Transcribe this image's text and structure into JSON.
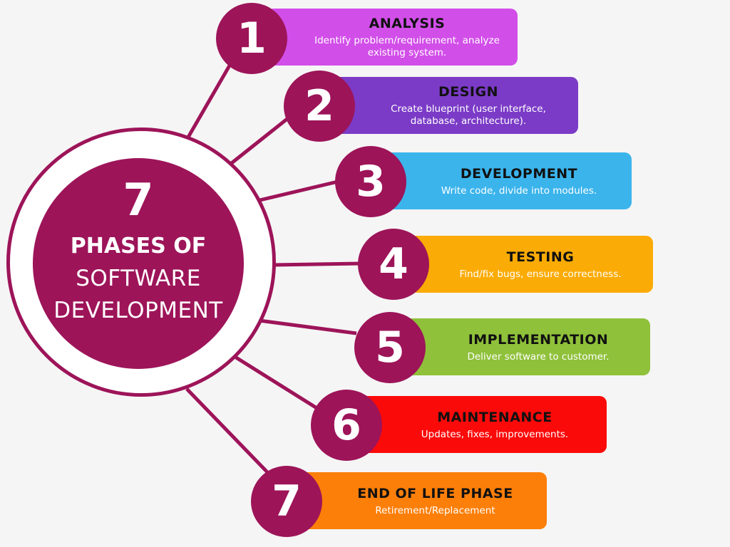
{
  "hub": {
    "number": "7",
    "line1": "PHASES OF",
    "line2": "SOFTWARE",
    "line3": "DEVELOPMENT",
    "color": "#9d1459"
  },
  "phases": [
    {
      "number": "1",
      "title": "ANALYSIS",
      "desc_lines": [
        "Identify problem/requirement, analyze",
        "existing system."
      ],
      "color": "#d24ee9"
    },
    {
      "number": "2",
      "title": "DESIGN",
      "desc_lines": [
        "Create blueprint (user interface,",
        "database, architecture)."
      ],
      "color": "#7b3bc7"
    },
    {
      "number": "3",
      "title": "DEVELOPMENT",
      "desc_lines": [
        "Write code, divide into modules."
      ],
      "color": "#3bb4ec"
    },
    {
      "number": "4",
      "title": "TESTING",
      "desc_lines": [
        "Find/fix bugs, ensure correctness."
      ],
      "color": "#fbab05"
    },
    {
      "number": "5",
      "title": "IMPLEMENTATION",
      "desc_lines": [
        "Deliver software to customer."
      ],
      "color": "#8fc13a"
    },
    {
      "number": "6",
      "title": "MAINTENANCE",
      "desc_lines": [
        "Updates, fixes, improvements."
      ],
      "color": "#fb0a0a"
    },
    {
      "number": "7",
      "title": "END OF LIFE PHASE",
      "desc_lines": [
        "Retirement/Replacement"
      ],
      "color": "#fc7f0a"
    }
  ]
}
